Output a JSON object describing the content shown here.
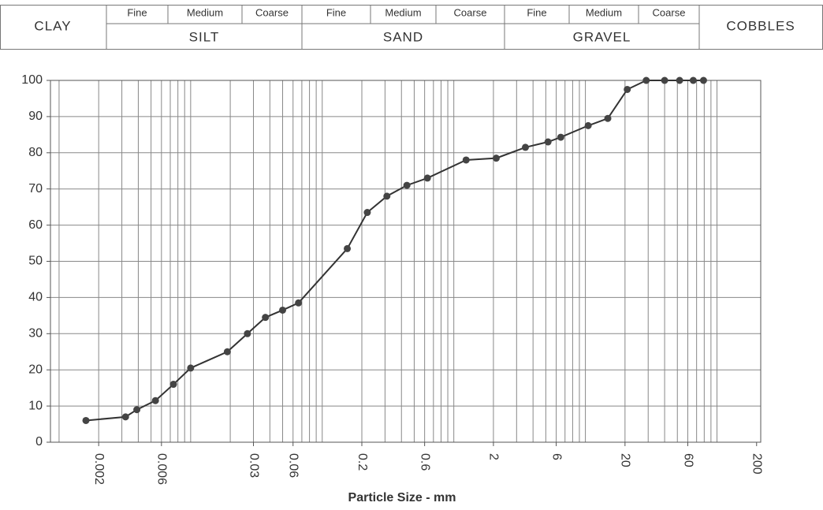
{
  "header": {
    "clay": "CLAY",
    "cobbles": "COBBLES",
    "groups": [
      {
        "name": "SILT",
        "subdivisions": [
          "Fine",
          "Medium",
          "Coarse"
        ]
      },
      {
        "name": "SAND",
        "subdivisions": [
          "Fine",
          "Medium",
          "Coarse"
        ]
      },
      {
        "name": "GRAVEL",
        "subdivisions": [
          "Fine",
          "Medium",
          "Coarse"
        ]
      }
    ]
  },
  "chart_data": {
    "type": "line",
    "x_label": "Particle Size  -  mm",
    "log_x": true,
    "grid": true,
    "color": "#333333",
    "x": [
      0.0016,
      0.0032,
      0.0039,
      0.0054,
      0.0074,
      0.01,
      0.019,
      0.027,
      0.037,
      0.05,
      0.066,
      0.155,
      0.22,
      0.31,
      0.44,
      0.63,
      1.24,
      2.1,
      3.5,
      5.2,
      6.5,
      10.5,
      14.8,
      20.8,
      29,
      40,
      52,
      66,
      79
    ],
    "values": [
      6,
      7,
      9,
      11.5,
      16,
      20.5,
      25,
      30,
      34.5,
      36.5,
      38.5,
      53.5,
      63.5,
      68,
      71,
      73,
      78,
      78.5,
      81.5,
      83,
      84.3,
      87.5,
      89.5,
      97.5,
      100,
      100,
      100,
      100,
      100
    ],
    "xlim": [
      0.00086,
      215
    ],
    "xticks": [
      0.002,
      0.006,
      0.03,
      0.06,
      0.2,
      0.6,
      2,
      6,
      20,
      60,
      200
    ],
    "xgrid": [
      0.001,
      0.002,
      0.003,
      0.004,
      0.005,
      0.006,
      0.007,
      0.008,
      0.009,
      0.01,
      0.02,
      0.03,
      0.04,
      0.05,
      0.06,
      0.07,
      0.08,
      0.09,
      0.1,
      0.2,
      0.3,
      0.4,
      0.5,
      0.6,
      0.7,
      0.8,
      0.9,
      1,
      2,
      3,
      4,
      5,
      6,
      7,
      8,
      9,
      10,
      20,
      30,
      40,
      50,
      60,
      70,
      80,
      90,
      100
    ],
    "ylim": [
      0,
      100
    ],
    "yticks": [
      0,
      10,
      20,
      30,
      40,
      50,
      60,
      70,
      80,
      90,
      100
    ]
  }
}
